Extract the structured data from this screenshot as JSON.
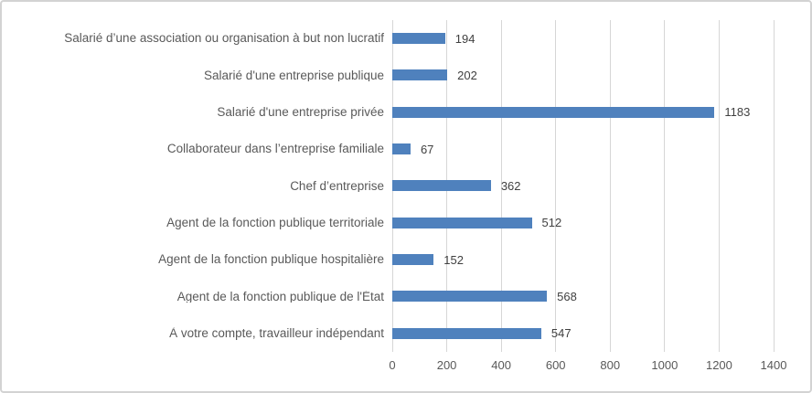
{
  "chart_data": {
    "type": "bar",
    "orientation": "horizontal",
    "title": "",
    "xlabel": "",
    "ylabel": "",
    "categories": [
      "Salarié d’une association ou organisation à but non lucratif",
      "Salarié d'une entreprise publique",
      "Salarié d'une entreprise privée",
      "Collaborateur dans l’entreprise familiale",
      "Chef d’entreprise",
      "Agent de la fonction publique territoriale",
      "Agent de la fonction publique hospitalière",
      "Agent de la fonction publique de l'État",
      "À votre compte, travailleur indépendant"
    ],
    "values": [
      194,
      202,
      1183,
      67,
      362,
      512,
      152,
      568,
      547
    ],
    "data_labels": [
      "194",
      "202",
      "1183",
      "67",
      "362",
      "512",
      "152",
      "568",
      "547"
    ],
    "xlim": [
      0,
      1400
    ],
    "x_ticks": [
      "0",
      "200",
      "400",
      "600",
      "800",
      "1000",
      "1200",
      "1400"
    ],
    "grid": true,
    "legend": false,
    "show_data_labels": true,
    "colors": {
      "bar": "#4F81BD",
      "gridline": "#D6D6D6",
      "axis_text": "#595959",
      "data_label_text": "#404040",
      "border": "#D3D3D3",
      "background": "#FFFFFF"
    }
  }
}
